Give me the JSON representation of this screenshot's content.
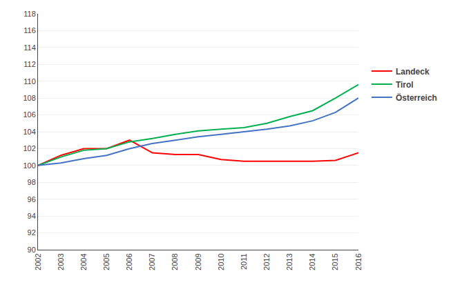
{
  "chart_data": {
    "type": "line",
    "x": [
      2002,
      2003,
      2004,
      2005,
      2006,
      2007,
      2008,
      2009,
      2010,
      2011,
      2012,
      2013,
      2014,
      2015,
      2016
    ],
    "series": [
      {
        "name": "Landeck",
        "color": "#ff0000",
        "values": [
          100.0,
          101.2,
          102.0,
          102.0,
          103.0,
          101.5,
          101.3,
          101.3,
          100.7,
          100.5,
          100.5,
          100.5,
          100.5,
          100.6,
          101.5
        ]
      },
      {
        "name": "Tirol",
        "color": "#00b050",
        "values": [
          100.0,
          101.0,
          101.8,
          102.0,
          102.8,
          103.2,
          103.7,
          104.1,
          104.3,
          104.5,
          105.0,
          105.8,
          106.5,
          108.0,
          109.6
        ]
      },
      {
        "name": "Österreich",
        "color": "#4472c4",
        "values": [
          100.0,
          100.3,
          100.8,
          101.2,
          102.0,
          102.6,
          103.0,
          103.4,
          103.7,
          104.0,
          104.3,
          104.7,
          105.3,
          106.3,
          108.0
        ]
      }
    ],
    "xlim": [
      2002,
      2016
    ],
    "xticks": [
      2002,
      2003,
      2004,
      2005,
      2006,
      2007,
      2008,
      2009,
      2010,
      2011,
      2012,
      2013,
      2014,
      2015,
      2016
    ],
    "ylim": [
      90,
      118
    ],
    "yticks": [
      90,
      92,
      94,
      96,
      98,
      100,
      102,
      104,
      106,
      108,
      110,
      112,
      114,
      116,
      118
    ],
    "grid": true,
    "legend": "right"
  }
}
